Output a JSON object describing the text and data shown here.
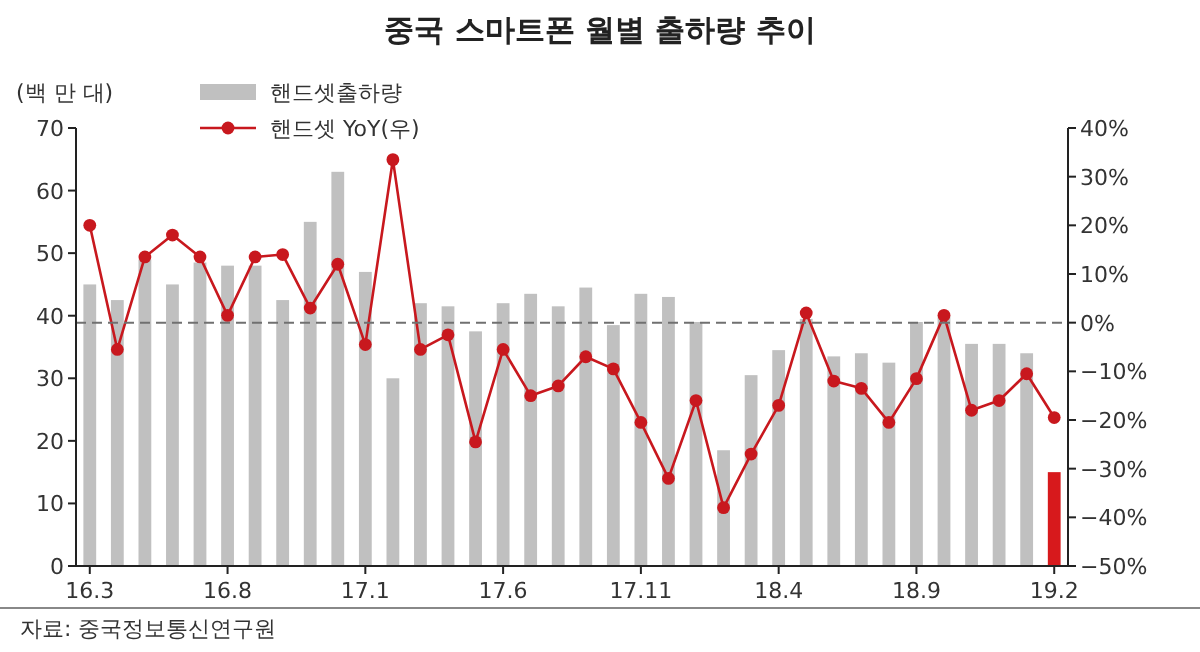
{
  "chart_data": {
    "type": "bar",
    "title": "중국 스마트폰 월별 출하량 추이",
    "ylabel": "(백 만 대)",
    "categories": [
      "16.3",
      null,
      null,
      null,
      null,
      "16.8",
      null,
      null,
      null,
      null,
      "17.1",
      null,
      null,
      null,
      null,
      "17.6",
      null,
      null,
      null,
      null,
      "17.11",
      null,
      null,
      null,
      null,
      "18.4",
      null,
      null,
      null,
      null,
      "18.9",
      null,
      null,
      null,
      null,
      "19.2"
    ],
    "series": [
      {
        "name": "핸드셋출하량",
        "color": "#c0c0c0",
        "colors": [
          "#c0c0c0",
          "#c0c0c0",
          "#c0c0c0",
          "#c0c0c0",
          "#c0c0c0",
          "#c0c0c0",
          "#c0c0c0",
          "#c0c0c0",
          "#c0c0c0",
          "#c0c0c0",
          "#c0c0c0",
          "#c0c0c0",
          "#c0c0c0",
          "#c0c0c0",
          "#c0c0c0",
          "#c0c0c0",
          "#c0c0c0",
          "#c0c0c0",
          "#c0c0c0",
          "#c0c0c0",
          "#c0c0c0",
          "#c0c0c0",
          "#c0c0c0",
          "#c0c0c0",
          "#c0c0c0",
          "#c0c0c0",
          "#c0c0c0",
          "#c0c0c0",
          "#c0c0c0",
          "#c0c0c0",
          "#c0c0c0",
          "#c0c0c0",
          "#c0c0c0",
          "#c0c0c0",
          "#c0c0c0",
          "#d7191c"
        ],
        "values": [
          45,
          42.5,
          49,
          45,
          48.5,
          48,
          48,
          42.5,
          55,
          63,
          47,
          30,
          42,
          41.5,
          37.5,
          42,
          43.5,
          41.5,
          44.5,
          38.5,
          43.5,
          43,
          39,
          18.5,
          30.5,
          34.5,
          39.5,
          33.5,
          34,
          32.5,
          39,
          40,
          35.5,
          35.5,
          34,
          15
        ]
      },
      {
        "name": "핸드셋 YoY(우)",
        "type": "line",
        "axis": "y2",
        "color": "#c8181e",
        "marker": "circle",
        "values": [
          20,
          -5.5,
          13.5,
          18,
          13.5,
          1.5,
          13.5,
          14,
          3,
          12,
          -4.5,
          33.5,
          -5.5,
          -2.5,
          -24.5,
          -5.5,
          -15,
          -13,
          -7,
          -9.5,
          -20.5,
          -32,
          -16,
          -38,
          -27,
          -17,
          2,
          -12,
          -13.5,
          -20.5,
          -11.5,
          1.5,
          -18,
          -16,
          -10.5,
          -19.5
        ]
      }
    ],
    "ylim": [
      0,
      70
    ],
    "yticks": [
      0,
      10,
      20,
      30,
      40,
      50,
      60,
      70
    ],
    "y2lim": [
      -50,
      40
    ],
    "y2ticks": [
      {
        "value": -50,
        "label": "−50%"
      },
      {
        "value": -40,
        "label": "−40%"
      },
      {
        "value": -30,
        "label": "−30%"
      },
      {
        "value": -20,
        "label": "−20%"
      },
      {
        "value": -10,
        "label": "−10%"
      },
      {
        "value": 0,
        "label": "0%"
      },
      {
        "value": 10,
        "label": "10%"
      },
      {
        "value": 20,
        "label": "20%"
      },
      {
        "value": 30,
        "label": "30%"
      },
      {
        "value": 40,
        "label": "40%"
      }
    ],
    "ref_lines": [
      {
        "axis": "y2",
        "value": 0,
        "color": "#707070",
        "line_style": "dashed"
      }
    ],
    "legend": "top left",
    "grid": false,
    "annotations": [
      "자료: 중국정보통신연구원"
    ]
  }
}
